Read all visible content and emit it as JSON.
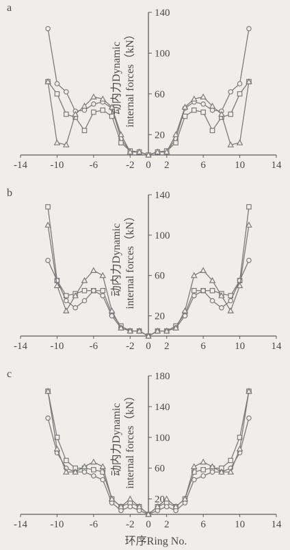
{
  "figure": {
    "xlabel": "环序Ring No.",
    "colors": {
      "line": "#7a7a7a",
      "axis": "#5a5a5a",
      "text": "#4a4a4a",
      "marker_fill": "#efeeea"
    }
  },
  "chart_data": [
    {
      "panel": "a",
      "type": "line",
      "ylabel": [
        "动内力Dynamic",
        "internal forces（kN）"
      ],
      "xlim": [
        -14,
        14
      ],
      "ylim": [
        0,
        140
      ],
      "xticks": [
        "-14",
        "-10",
        "-6",
        "-2",
        "0",
        "2",
        "6",
        "10",
        "14"
      ],
      "yticks": [
        "20",
        "60",
        "100",
        "140"
      ],
      "series": [
        {
          "marker": "circle",
          "x": [
            -11,
            -10,
            -9,
            -8,
            -7,
            -6,
            -5,
            -4,
            -3,
            -2,
            -1,
            0,
            1,
            2,
            3,
            4,
            5,
            6,
            7,
            8,
            9,
            10,
            11
          ],
          "values": [
            124,
            70,
            62,
            43,
            44,
            50,
            52,
            46,
            16,
            3,
            3,
            0,
            3,
            3,
            16,
            46,
            52,
            50,
            44,
            43,
            62,
            70,
            124
          ]
        },
        {
          "marker": "square",
          "x": [
            -11,
            -10,
            -9,
            -8,
            -7,
            -6,
            -5,
            -4,
            -3,
            -2,
            -1,
            0,
            1,
            2,
            3,
            4,
            5,
            6,
            7,
            8,
            9,
            10,
            11
          ],
          "values": [
            72,
            60,
            40,
            37,
            24,
            42,
            44,
            38,
            12,
            4,
            3,
            0,
            3,
            4,
            12,
            38,
            44,
            42,
            24,
            37,
            40,
            60,
            72
          ]
        },
        {
          "marker": "triangle",
          "x": [
            -11,
            -10,
            -9,
            -8,
            -7,
            -6,
            -5,
            -4,
            -3,
            -2,
            -1,
            0,
            1,
            2,
            3,
            4,
            5,
            6,
            7,
            8,
            9,
            10,
            11
          ],
          "values": [
            72,
            12,
            10,
            40,
            48,
            57,
            55,
            47,
            20,
            3,
            3,
            0,
            3,
            3,
            20,
            47,
            55,
            57,
            48,
            40,
            10,
            12,
            72
          ]
        }
      ]
    },
    {
      "panel": "b",
      "type": "line",
      "ylabel": [
        "动内力Dynamic",
        "internal forces（kN）"
      ],
      "xlim": [
        -14,
        14
      ],
      "ylim": [
        0,
        140
      ],
      "xticks": [
        "-14",
        "-10",
        "-6",
        "-2",
        "0",
        "2",
        "6",
        "10",
        "14"
      ],
      "yticks": [
        "20",
        "60",
        "100",
        "140"
      ],
      "series": [
        {
          "marker": "square",
          "x": [
            -11,
            -10,
            -9,
            -8,
            -7,
            -6,
            -5,
            -4,
            -3,
            -2,
            -1,
            0,
            1,
            2,
            3,
            4,
            5,
            6,
            7,
            8,
            9,
            10,
            11
          ],
          "values": [
            128,
            55,
            40,
            42,
            45,
            45,
            45,
            22,
            10,
            5,
            5,
            0,
            5,
            5,
            10,
            22,
            45,
            45,
            45,
            42,
            40,
            55,
            128
          ]
        },
        {
          "marker": "circle",
          "x": [
            -11,
            -10,
            -9,
            -8,
            -7,
            -6,
            -5,
            -4,
            -3,
            -2,
            -1,
            0,
            1,
            2,
            3,
            4,
            5,
            6,
            7,
            8,
            9,
            10,
            11
          ],
          "values": [
            75,
            55,
            35,
            28,
            35,
            45,
            40,
            20,
            8,
            5,
            5,
            0,
            5,
            5,
            8,
            20,
            40,
            45,
            35,
            28,
            35,
            55,
            75
          ]
        },
        {
          "marker": "triangle",
          "x": [
            -11,
            -10,
            -9,
            -8,
            -7,
            -6,
            -5,
            -4,
            -3,
            -2,
            -1,
            0,
            1,
            2,
            3,
            4,
            5,
            6,
            7,
            8,
            9,
            10,
            11
          ],
          "values": [
            110,
            50,
            25,
            40,
            55,
            65,
            60,
            25,
            8,
            5,
            5,
            0,
            5,
            5,
            8,
            25,
            60,
            65,
            55,
            40,
            25,
            50,
            110
          ]
        }
      ]
    },
    {
      "panel": "c",
      "type": "line",
      "ylabel": [
        "动内力Dynamic",
        "internal forces（kN）"
      ],
      "xlim": [
        -14,
        14
      ],
      "ylim": [
        0,
        180
      ],
      "xticks": [
        "-14",
        "-10",
        "-6",
        "-2",
        "0",
        "2",
        "6",
        "10",
        "14"
      ],
      "yticks": [
        "20",
        "60",
        "100",
        "140",
        "180"
      ],
      "series": [
        {
          "marker": "square",
          "x": [
            -11,
            -10,
            -9,
            -8,
            -7,
            -6,
            -5,
            -4,
            -3,
            -2,
            -1,
            0,
            1,
            2,
            3,
            4,
            5,
            6,
            7,
            8,
            9,
            10,
            11
          ],
          "values": [
            160,
            100,
            70,
            60,
            60,
            58,
            55,
            20,
            10,
            15,
            10,
            0,
            10,
            15,
            10,
            20,
            55,
            58,
            60,
            60,
            70,
            100,
            160
          ]
        },
        {
          "marker": "circle",
          "x": [
            -11,
            -10,
            -9,
            -8,
            -7,
            -6,
            -5,
            -4,
            -3,
            -2,
            -1,
            0,
            1,
            2,
            3,
            4,
            5,
            6,
            7,
            8,
            9,
            10,
            11
          ],
          "values": [
            125,
            80,
            60,
            55,
            55,
            50,
            45,
            15,
            5,
            10,
            5,
            0,
            5,
            10,
            5,
            15,
            45,
            50,
            55,
            55,
            60,
            80,
            125
          ]
        },
        {
          "marker": "triangle",
          "x": [
            -11,
            -10,
            -9,
            -8,
            -7,
            -6,
            -5,
            -4,
            -3,
            -2,
            -1,
            0,
            1,
            2,
            3,
            4,
            5,
            6,
            7,
            8,
            9,
            10,
            11
          ],
          "values": [
            160,
            85,
            55,
            55,
            62,
            68,
            62,
            20,
            10,
            20,
            10,
            0,
            10,
            20,
            10,
            20,
            62,
            68,
            62,
            55,
            55,
            85,
            160
          ]
        }
      ]
    }
  ]
}
